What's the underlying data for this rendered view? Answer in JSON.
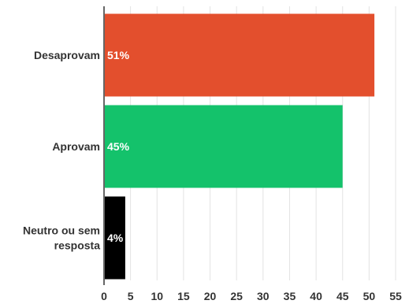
{
  "chart_data": {
    "type": "bar",
    "orientation": "horizontal",
    "categories": [
      "Desaprovam",
      "Aprovam",
      "Neutro ou sem resposta"
    ],
    "category_lines": [
      [
        "Desaprovam"
      ],
      [
        "Aprovam"
      ],
      [
        "Neutro ou sem",
        "resposta"
      ]
    ],
    "values": [
      51,
      45,
      4
    ],
    "data_labels": [
      "51%",
      "45%",
      "4%"
    ],
    "colors": [
      "#e34f2d",
      "#14c26b",
      "#000000"
    ],
    "xlim": [
      0,
      55
    ],
    "xticks": [
      0,
      5,
      10,
      15,
      20,
      25,
      30,
      35,
      40,
      45,
      50,
      55
    ],
    "grid": true,
    "legend": "none"
  }
}
